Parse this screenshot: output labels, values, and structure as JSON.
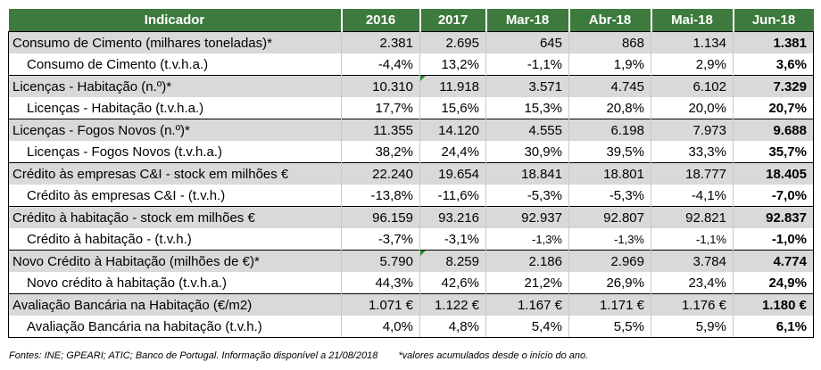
{
  "header": [
    "Indicador",
    "2016",
    "2017",
    "Mar-18",
    "Abr-18",
    "Mai-18",
    "Jun-18"
  ],
  "rows": [
    {
      "label": "Consumo de Cimento (milhares toneladas)*",
      "values": [
        "2.381",
        "2.695",
        "645",
        "868",
        "1.134",
        "1.381"
      ]
    },
    {
      "label": "Consumo de Cimento (t.v.h.a.)",
      "values": [
        "-4,4%",
        "13,2%",
        "-1,1%",
        "1,9%",
        "2,9%",
        "3,6%"
      ]
    },
    {
      "label": "Licenças - Habitação (n.º)*",
      "values": [
        "10.310",
        "11.918",
        "3.571",
        "4.745",
        "6.102",
        "7.329"
      ]
    },
    {
      "label": "Licenças - Habitação (t.v.h.a.)",
      "values": [
        "17,7%",
        "15,6%",
        "15,3%",
        "20,8%",
        "20,0%",
        "20,7%"
      ]
    },
    {
      "label": "Licenças - Fogos Novos (n.º)*",
      "values": [
        "11.355",
        "14.120",
        "4.555",
        "6.198",
        "7.973",
        "9.688"
      ]
    },
    {
      "label": "Licenças - Fogos Novos (t.v.h.a.)",
      "values": [
        "38,2%",
        "24,4%",
        "30,9%",
        "39,5%",
        "33,3%",
        "35,7%"
      ]
    },
    {
      "label": "Crédito às empresas C&I - stock em milhões €",
      "values": [
        "22.240",
        "19.654",
        "18.841",
        "18.801",
        "18.777",
        "18.405"
      ]
    },
    {
      "label": "Crédito às empresas C&I - (t.v.h.)",
      "values": [
        "-13,8%",
        "-11,6%",
        "-5,3%",
        "-5,3%",
        "-4,1%",
        "-7,0%"
      ]
    },
    {
      "label": "Crédito à habitação - stock em milhões €",
      "values": [
        "96.159",
        "93.216",
        "92.937",
        "92.807",
        "92.821",
        "92.837"
      ]
    },
    {
      "label": "Crédito à habitação - (t.v.h.)",
      "values": [
        "-3,7%",
        "-3,1%",
        "-1,3%",
        "-1,3%",
        "-1,1%",
        "-1,0%"
      ]
    },
    {
      "label": "Novo Crédito à Habitação (milhões de €)*",
      "values": [
        "5.790",
        "8.259",
        "2.186",
        "2.969",
        "3.784",
        "4.774"
      ]
    },
    {
      "label": "Novo crédito à habitação (t.v.h.a.)",
      "values": [
        "44,3%",
        "42,6%",
        "21,2%",
        "26,9%",
        "23,4%",
        "24,9%"
      ]
    },
    {
      "label": "Avaliação Bancária na Habitação (€/m2)",
      "values": [
        "1.071 €",
        "1.122 €",
        "1.167 €",
        "1.171 €",
        "1.176 €",
        "1.180 €"
      ]
    },
    {
      "label": "Avaliação Bancária na habitação (t.v.h.)",
      "values": [
        "4,0%",
        "4,8%",
        "5,4%",
        "5,5%",
        "5,9%",
        "6,1%"
      ]
    }
  ],
  "footer": {
    "sources": "Fontes: INE; GPEARI; ATIC; Banco de Portugal. Informação disponível a 21/08/2018",
    "note": "*valores acumulados desde o início do ano."
  }
}
